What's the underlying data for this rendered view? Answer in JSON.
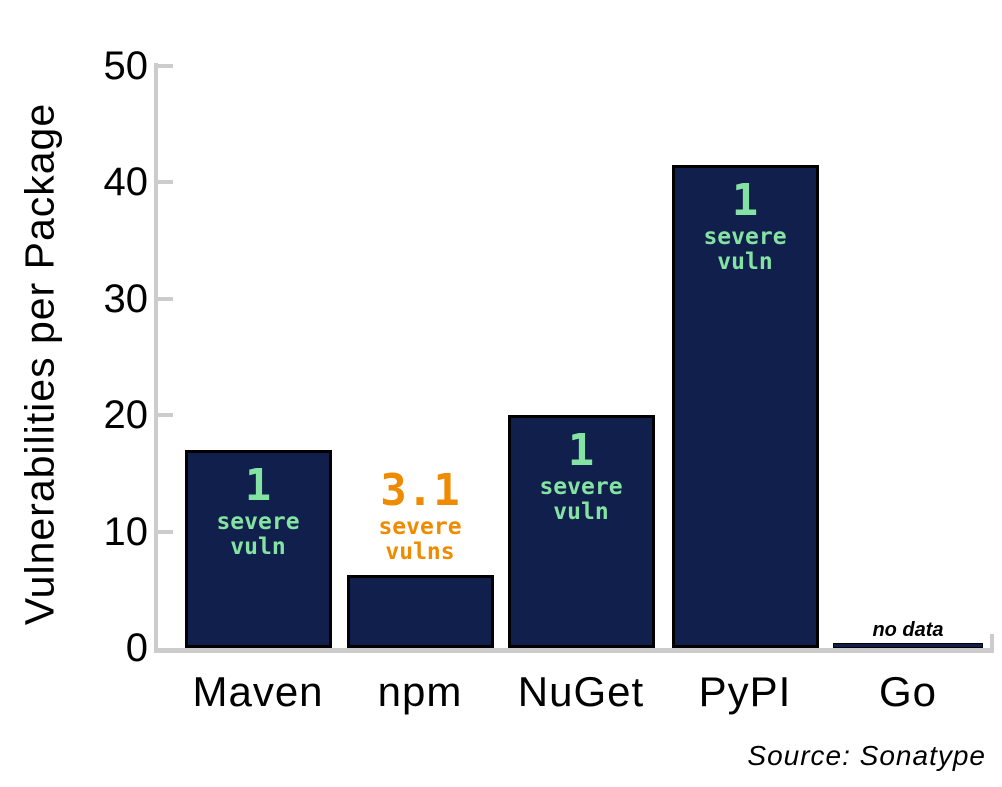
{
  "chart_data": {
    "type": "bar",
    "title": "",
    "xlabel": "",
    "ylabel": "Vulnerabilities per Package",
    "ylim": [
      0,
      50
    ],
    "yticks": [
      0,
      10,
      20,
      30,
      40,
      50
    ],
    "grid": false,
    "legend": null,
    "categories": [
      "Maven",
      "npm",
      "NuGet",
      "PyPI",
      "Go"
    ],
    "values": [
      17,
      6.3,
      20,
      41.5,
      null
    ],
    "bar_annotations": [
      {
        "number": "1",
        "lines": [
          "severe",
          "vuln"
        ],
        "placement": "inside",
        "color": "#84e2a2"
      },
      {
        "number": "3.1",
        "lines": [
          "severe",
          "vulns"
        ],
        "placement": "above",
        "color": "#ee8b00"
      },
      {
        "number": "1",
        "lines": [
          "severe",
          "vuln"
        ],
        "placement": "inside",
        "color": "#84e2a2"
      },
      {
        "number": "1",
        "lines": [
          "severe",
          "vuln"
        ],
        "placement": "inside",
        "color": "#84e2a2"
      },
      {
        "number": "",
        "lines": [
          "no data"
        ],
        "placement": "no-data",
        "color": "#000000"
      }
    ],
    "no_data_label": "no data",
    "source": "Source: Sonatype",
    "colors": {
      "bar_fill": "#101f4b",
      "bar_edge": "#000000",
      "axis": "#cccccc",
      "label_green": "#84e2a2",
      "label_orange": "#ee8b00",
      "text": "#000000"
    }
  }
}
